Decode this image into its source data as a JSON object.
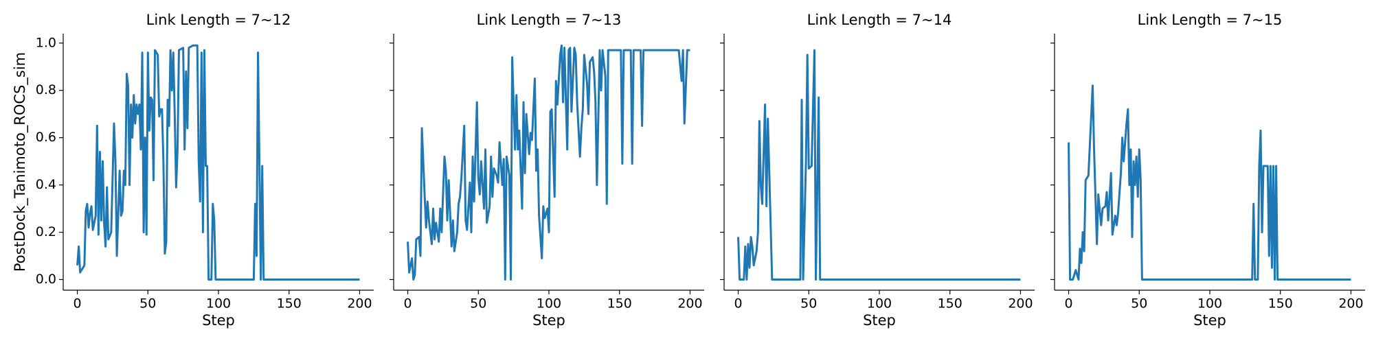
{
  "chart_data": [
    {
      "type": "line",
      "title": "Link Length = 7~12",
      "x_label": "Step",
      "y_label": "PostDock_Tanimoto_ROCS_sim",
      "color": "#1f77b4",
      "xlim": [
        -10,
        210
      ],
      "ylim": [
        -0.045,
        1.04
      ],
      "xticks": [
        0,
        50,
        100,
        150,
        200
      ],
      "yticks": [
        {
          "value": 0,
          "label": "0.0"
        },
        {
          "value": 0.2,
          "label": "0.2"
        },
        {
          "value": 0.4,
          "label": "0.4"
        },
        {
          "value": 0.6,
          "label": "0.6"
        },
        {
          "value": 0.8,
          "label": "0.8"
        },
        {
          "value": 1.0,
          "label": "1.0"
        }
      ],
      "x": [
        0,
        1,
        2,
        5,
        6,
        7,
        8,
        9,
        10,
        11,
        13,
        14,
        15,
        16,
        17,
        18,
        19,
        20,
        21,
        22,
        24,
        26,
        27,
        28,
        30,
        31,
        32,
        33,
        34,
        35,
        36,
        37,
        38,
        39,
        40,
        41,
        42,
        43,
        44,
        45,
        46,
        47,
        48,
        49,
        50,
        51,
        52,
        53,
        54,
        55,
        57,
        58,
        59,
        60,
        61,
        62,
        63,
        64,
        65,
        66,
        67,
        68,
        69,
        70,
        71,
        72,
        75,
        76,
        77,
        78,
        79,
        82,
        84,
        85,
        86,
        87,
        88,
        89,
        90,
        91,
        92,
        93,
        95,
        96,
        97,
        98,
        125,
        126,
        127,
        128,
        129,
        130,
        131,
        132,
        200
      ],
      "values": [
        0.06,
        0.14,
        0.03,
        0.06,
        0.29,
        0.32,
        0.22,
        0.28,
        0.31,
        0.21,
        0.27,
        0.65,
        0.19,
        0.54,
        0.25,
        0.5,
        0.24,
        0.14,
        0.39,
        0.17,
        0.2,
        0.66,
        0.5,
        0.1,
        0.46,
        0.27,
        0.29,
        0.46,
        0.4,
        0.87,
        0.82,
        0.4,
        0.74,
        0.6,
        0.78,
        0.66,
        0.74,
        0.7,
        0.74,
        0.55,
        0.96,
        0.2,
        0.6,
        0.19,
        0.96,
        0.63,
        0.77,
        0.76,
        0.42,
        0.97,
        0.95,
        0.69,
        0.72,
        0.72,
        0.5,
        0.11,
        0.16,
        0.76,
        0.65,
        0.97,
        0.8,
        0.96,
        0.7,
        0.39,
        0.55,
        0.97,
        0.98,
        0.55,
        0.88,
        0.64,
        0.98,
        0.99,
        0.99,
        0.99,
        0.5,
        0.33,
        0.96,
        0.2,
        0.97,
        0.48,
        0.48,
        0,
        0,
        0.32,
        0.25,
        0,
        0,
        0.32,
        0.1,
        0.96,
        0.5,
        0,
        0.48,
        0,
        0
      ]
    },
    {
      "type": "line",
      "title": "Link Length = 7~13",
      "x_label": "Step",
      "color": "#1f77b4",
      "xlim": [
        -10,
        210
      ],
      "ylim": [
        -0.045,
        1.04
      ],
      "xticks": [
        0,
        50,
        100,
        150,
        200
      ],
      "yticks": [
        0,
        0.2,
        0.4,
        0.6,
        0.8,
        1.0
      ],
      "x": [
        0,
        1,
        3,
        4,
        5,
        6,
        8,
        9,
        10,
        12,
        13,
        14,
        15,
        17,
        18,
        19,
        20,
        22,
        23,
        24,
        26,
        27,
        28,
        29,
        31,
        32,
        33,
        35,
        36,
        37,
        38,
        40,
        41,
        42,
        44,
        45,
        46,
        47,
        49,
        50,
        51,
        52,
        54,
        55,
        56,
        58,
        59,
        60,
        61,
        63,
        64,
        65,
        67,
        68,
        69,
        70,
        72,
        73,
        74,
        76,
        77,
        78,
        79,
        81,
        82,
        83,
        84,
        86,
        87,
        88,
        90,
        91,
        92,
        93,
        95,
        96,
        97,
        99,
        100,
        101,
        102,
        104,
        105,
        106,
        108,
        109,
        110,
        111,
        113,
        114,
        115,
        116,
        118,
        119,
        120,
        122,
        123,
        124,
        125,
        127,
        128,
        129,
        131,
        132,
        133,
        134,
        136,
        137,
        138,
        140,
        141,
        142,
        151,
        152,
        153,
        158,
        159,
        160,
        165,
        166,
        167,
        192,
        194,
        195,
        196,
        198,
        200
      ],
      "values": [
        0.16,
        0.03,
        0.09,
        0,
        0.02,
        0.17,
        0.18,
        0.1,
        0.64,
        0.35,
        0.22,
        0.33,
        0.25,
        0.15,
        0.3,
        0.17,
        0.24,
        0.16,
        0.3,
        0.2,
        0.52,
        0.46,
        0.25,
        0.42,
        0.14,
        0.25,
        0.12,
        0.2,
        0.32,
        0.35,
        0.43,
        0.65,
        0.25,
        0.21,
        0.41,
        0.2,
        0.52,
        0.33,
        0.75,
        0.43,
        0.36,
        0.5,
        0.3,
        0.55,
        0.24,
        0.31,
        0.52,
        0.35,
        0.47,
        0.44,
        0.41,
        0.58,
        0.4,
        0.51,
        0,
        0.52,
        0.44,
        0,
        0.94,
        0.55,
        0.78,
        0.55,
        0.63,
        0.3,
        0.75,
        0.45,
        0.7,
        0.53,
        0.62,
        0.59,
        0.85,
        0.46,
        0.55,
        0.27,
        0.09,
        0.31,
        0.26,
        0.3,
        0.2,
        0.71,
        0.72,
        0.35,
        0.84,
        0.74,
        0.95,
        0.99,
        0.75,
        0.98,
        0.55,
        0.97,
        0.98,
        0.71,
        0.98,
        0.95,
        0.75,
        0.52,
        0.64,
        0.72,
        0.95,
        0.83,
        0.7,
        0.92,
        0.94,
        0.88,
        0.75,
        0.4,
        0.97,
        0.8,
        0.97,
        0.86,
        0.32,
        0.97,
        0.97,
        0.49,
        0.97,
        0.97,
        0.49,
        0.97,
        0.97,
        0.65,
        0.97,
        0.97,
        0.84,
        0.97,
        0.66,
        0.97,
        0.97
      ]
    },
    {
      "type": "line",
      "title": "Link Length = 7~14",
      "x_label": "Step",
      "color": "#1f77b4",
      "xlim": [
        -10,
        210
      ],
      "ylim": [
        -0.045,
        1.04
      ],
      "xticks": [
        0,
        50,
        100,
        150,
        200
      ],
      "yticks": [
        0,
        0.2,
        0.4,
        0.6,
        0.8,
        1.0
      ],
      "x": [
        0,
        1,
        4,
        5,
        6,
        7,
        8,
        9,
        10,
        11,
        13,
        14,
        15,
        16,
        17,
        19,
        20,
        21,
        24,
        44,
        45,
        46,
        48,
        49,
        50,
        52,
        54,
        55,
        57,
        58,
        200
      ],
      "values": [
        0.18,
        0,
        0,
        0.14,
        0,
        0.15,
        0.05,
        0.18,
        0.14,
        0.06,
        0.12,
        0.2,
        0.67,
        0.4,
        0.32,
        0.74,
        0.31,
        0.68,
        0,
        0,
        0.76,
        0,
        0.5,
        0.95,
        0.47,
        0.48,
        0.97,
        0,
        0.77,
        0,
        0
      ]
    },
    {
      "type": "line",
      "title": "Link Length = 7~15",
      "x_label": "Step",
      "color": "#1f77b4",
      "xlim": [
        -10,
        210
      ],
      "ylim": [
        -0.045,
        1.04
      ],
      "xticks": [
        0,
        50,
        100,
        150,
        200
      ],
      "yticks": [
        0,
        0.2,
        0.4,
        0.6,
        0.8,
        1.0
      ],
      "x": [
        0,
        1,
        3,
        5,
        7,
        8,
        9,
        10,
        11,
        12,
        14,
        17,
        18,
        20,
        21,
        23,
        24,
        26,
        27,
        28,
        30,
        31,
        33,
        34,
        35,
        37,
        38,
        39,
        41,
        42,
        43,
        44,
        45,
        46,
        47,
        48,
        49,
        50,
        51,
        52,
        130,
        131,
        132,
        134,
        135,
        136,
        137,
        138,
        141,
        142,
        143,
        144,
        145,
        146,
        147,
        148,
        200
      ],
      "values": [
        0.58,
        0,
        0,
        0.04,
        0,
        0.13,
        0.07,
        0.2,
        0.12,
        0.42,
        0.44,
        0.82,
        0.55,
        0.15,
        0.36,
        0.23,
        0.3,
        0.31,
        0.37,
        0.25,
        0.45,
        0.19,
        0.27,
        0.23,
        0.28,
        0.45,
        0.6,
        0.5,
        0.66,
        0.72,
        0.4,
        0.55,
        0.18,
        0.5,
        0.4,
        0.52,
        0.35,
        0.55,
        0.42,
        0,
        0,
        0.32,
        0,
        0,
        0.48,
        0.63,
        0.2,
        0.48,
        0.48,
        0.1,
        0.48,
        0.05,
        0.48,
        0,
        0.48,
        0,
        0
      ]
    }
  ]
}
